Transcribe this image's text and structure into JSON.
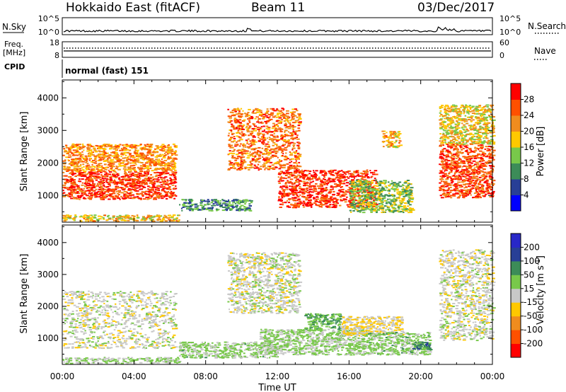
{
  "header": {
    "station": "Hokkaido East (fitACF)",
    "beam": "Beam 11",
    "date": "03/Dec/2017"
  },
  "noise_panel": {
    "left_label": "N.Sky",
    "right_label": "N.Search",
    "left_ticks": [
      "10^5",
      "10^0"
    ],
    "right_ticks": [
      "10^5",
      "10^0"
    ]
  },
  "freq_panel": {
    "left_label_1": "Freq.",
    "left_label_2": "[MHz]",
    "right_label": "Nave",
    "left_ticks": [
      "18",
      "8"
    ],
    "right_ticks": [
      "60",
      "0"
    ]
  },
  "cpid_panel": {
    "label": "CPID",
    "value": "normal (fast) 151"
  },
  "colors": {
    "power": [
      "#0000ff",
      "#283f96",
      "#3c8c58",
      "#78c84a",
      "#ffc800",
      "#f08c1e",
      "#ff5000",
      "#ff0000"
    ],
    "velocity": [
      "#ff0000",
      "#ff5000",
      "#f08c1e",
      "#ffc800",
      "#c8c8c8",
      "#78c84a",
      "#3c8c58",
      "#283f96",
      "#2828c8"
    ]
  },
  "chart_data": [
    {
      "type": "heatmap",
      "title": "",
      "xlabel": "",
      "ylabel": "Slant Range [km]",
      "x_ticks": [
        "00:00",
        "04:00",
        "08:00",
        "12:00",
        "16:00",
        "20:00",
        "00:00"
      ],
      "x_range_hours": [
        0,
        24
      ],
      "y_ticks": [
        1000,
        2000,
        3000,
        4000
      ],
      "y_range_km": [
        180,
        4550
      ],
      "colorbar": {
        "label": "Power [dB]",
        "ticks": [
          "4",
          "8",
          "12",
          "16",
          "20",
          "24",
          "28"
        ],
        "range": [
          0,
          32
        ]
      },
      "regions": [
        {
          "t_start": 0.0,
          "t_end": 6.3,
          "r_start": 900,
          "r_end": 1750,
          "value": 27
        },
        {
          "t_start": 0.0,
          "t_end": 6.3,
          "r_start": 1750,
          "r_end": 2600,
          "value": 22
        },
        {
          "t_start": 0.0,
          "t_end": 6.5,
          "r_start": 230,
          "r_end": 420,
          "value": 19
        },
        {
          "t_start": 6.5,
          "t_end": 10.5,
          "r_start": 550,
          "r_end": 900,
          "value": 10
        },
        {
          "t_start": 9.2,
          "t_end": 13.2,
          "r_start": 1800,
          "r_end": 3700,
          "value": 24
        },
        {
          "t_start": 12.0,
          "t_end": 17.5,
          "r_start": 650,
          "r_end": 1800,
          "value": 28
        },
        {
          "t_start": 16.0,
          "t_end": 19.5,
          "r_start": 500,
          "r_end": 1500,
          "value": 14
        },
        {
          "t_start": 17.8,
          "t_end": 18.8,
          "r_start": 2500,
          "r_end": 3000,
          "value": 20
        },
        {
          "t_start": 21.0,
          "t_end": 24.0,
          "r_start": 950,
          "r_end": 2600,
          "value": 26
        },
        {
          "t_start": 21.0,
          "t_end": 24.0,
          "r_start": 2600,
          "r_end": 3800,
          "value": 18
        }
      ]
    },
    {
      "type": "heatmap",
      "title": "",
      "xlabel": "Time UT",
      "ylabel": "Slant Range [km]",
      "x_ticks": [
        "00:00",
        "04:00",
        "08:00",
        "12:00",
        "16:00",
        "20:00",
        "00:00"
      ],
      "x_range_hours": [
        0,
        24
      ],
      "y_ticks": [
        1000,
        2000,
        3000,
        4000
      ],
      "y_range_km": [
        180,
        4550
      ],
      "colorbar": {
        "label": "Velocity [m s^-1]",
        "ticks": [
          "-200",
          "-100",
          "-50",
          "-15",
          "15",
          "50",
          "100",
          "200"
        ],
        "range": [
          -250,
          250
        ]
      },
      "regions": [
        {
          "t_start": 0.0,
          "t_end": 6.3,
          "r_start": 700,
          "r_end": 2500,
          "value": 0
        },
        {
          "t_start": 0.0,
          "t_end": 6.5,
          "r_start": 230,
          "r_end": 420,
          "value": 35
        },
        {
          "t_start": 6.5,
          "t_end": 12.0,
          "r_start": 400,
          "r_end": 900,
          "value": 40
        },
        {
          "t_start": 9.2,
          "t_end": 13.2,
          "r_start": 1800,
          "r_end": 3700,
          "value": 0
        },
        {
          "t_start": 11.0,
          "t_end": 17.0,
          "r_start": 500,
          "r_end": 1300,
          "value": 35
        },
        {
          "t_start": 13.5,
          "t_end": 15.5,
          "r_start": 1300,
          "r_end": 1800,
          "value": 80
        },
        {
          "t_start": 15.5,
          "t_end": 19.0,
          "r_start": 1100,
          "r_end": 1700,
          "value": -20
        },
        {
          "t_start": 17.0,
          "t_end": 20.5,
          "r_start": 500,
          "r_end": 1200,
          "value": 45
        },
        {
          "t_start": 19.5,
          "t_end": 20.5,
          "r_start": 650,
          "r_end": 900,
          "value": 120
        },
        {
          "t_start": 21.0,
          "t_end": 24.0,
          "r_start": 950,
          "r_end": 3800,
          "value": 0
        }
      ]
    }
  ]
}
